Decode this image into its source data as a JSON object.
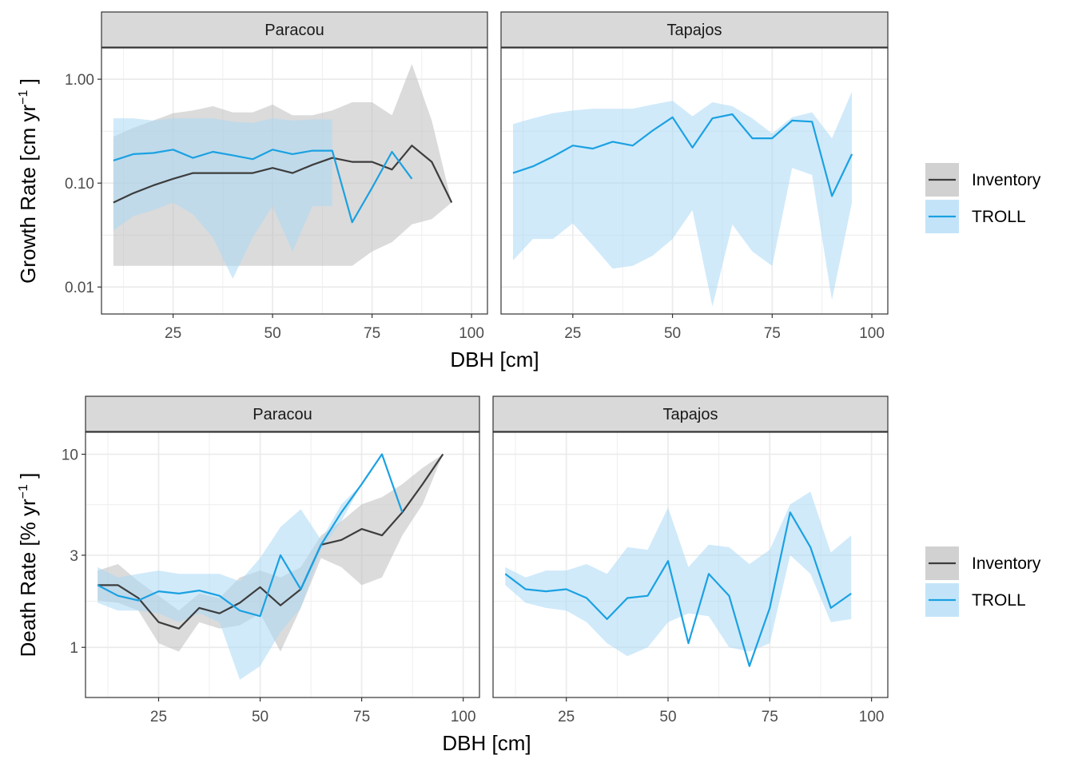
{
  "colors": {
    "inventory_line": "#3d3d3d",
    "inventory_band": "#bdbdbd",
    "troll_line": "#1ba1e2",
    "troll_band": "#a9d8f5",
    "strip_fill": "#d9d9d9",
    "grid": "#ebebeb"
  },
  "legend": [
    {
      "name": "Inventory",
      "color": "#3d3d3d",
      "band": "#bdbdbd"
    },
    {
      "name": "TROLL",
      "color": "#1ba1e2",
      "band": "#a9d8f5"
    }
  ],
  "chart_data": [
    {
      "type": "line",
      "facet": "Paracou",
      "title": "",
      "xlabel": "DBH [cm]",
      "ylabel": "Growth Rate [cm yr",
      "ylabel_sup": "−1",
      "ylabel_end": " ]",
      "yscale": "log",
      "xlim": [
        7,
        104
      ],
      "ylim": [
        0.0055,
        2.0
      ],
      "xticks": [
        25,
        50,
        75,
        100
      ],
      "yticks": [
        0.01,
        0.1,
        1.0
      ],
      "yticklabels": [
        "0.01",
        "0.10",
        "1.00"
      ],
      "series": [
        {
          "name": "Inventory",
          "x": [
            10,
            15,
            20,
            25,
            30,
            35,
            40,
            45,
            50,
            55,
            60,
            65,
            70,
            75,
            80,
            85,
            90,
            95
          ],
          "y": [
            0.065,
            0.08,
            0.095,
            0.11,
            0.125,
            0.125,
            0.125,
            0.125,
            0.14,
            0.125,
            0.15,
            0.175,
            0.16,
            0.16,
            0.135,
            0.23,
            0.16,
            0.065
          ],
          "upper": [
            0.28,
            0.34,
            0.4,
            0.47,
            0.5,
            0.55,
            0.48,
            0.48,
            0.57,
            0.45,
            0.45,
            0.5,
            0.6,
            0.6,
            0.45,
            1.4,
            0.4,
            0.065
          ],
          "lower": [
            0.016,
            0.016,
            0.016,
            0.016,
            0.016,
            0.016,
            0.016,
            0.016,
            0.016,
            0.016,
            0.016,
            0.016,
            0.016,
            0.022,
            0.027,
            0.04,
            0.045,
            0.065
          ]
        },
        {
          "name": "TROLL",
          "x": [
            10,
            15,
            20,
            25,
            30,
            35,
            40,
            45,
            50,
            55,
            60,
            65,
            70,
            75,
            80,
            85
          ],
          "y": [
            0.165,
            0.19,
            0.195,
            0.21,
            0.175,
            0.2,
            0.185,
            0.17,
            0.21,
            0.19,
            0.205,
            0.205,
            0.042,
            0.09,
            0.2,
            0.11
          ],
          "upper": [
            0.42,
            0.42,
            0.4,
            0.42,
            0.42,
            0.42,
            0.39,
            0.38,
            0.42,
            0.4,
            0.41,
            0.41,
            0.0,
            0.0,
            0.0,
            0.0
          ],
          "lower": [
            0.035,
            0.048,
            0.055,
            0.065,
            0.05,
            0.03,
            0.012,
            0.03,
            0.06,
            0.022,
            0.06,
            0.06,
            0.0,
            0.0,
            0.0,
            0.0
          ]
        }
      ]
    },
    {
      "type": "line",
      "facet": "Tapajos",
      "title": "",
      "xlabel": "DBH [cm]",
      "ylabel": "",
      "yscale": "log",
      "xlim": [
        7,
        104
      ],
      "ylim": [
        0.0055,
        2.0
      ],
      "xticks": [
        25,
        50,
        75,
        100
      ],
      "series": [
        {
          "name": "TROLL",
          "x": [
            10,
            15,
            20,
            25,
            30,
            35,
            40,
            45,
            50,
            55,
            60,
            65,
            70,
            75,
            80,
            85,
            90,
            95
          ],
          "y": [
            0.125,
            0.145,
            0.18,
            0.23,
            0.215,
            0.25,
            0.23,
            0.32,
            0.43,
            0.22,
            0.42,
            0.46,
            0.27,
            0.27,
            0.4,
            0.39,
            0.075,
            0.19
          ],
          "upper": [
            0.37,
            0.42,
            0.47,
            0.5,
            0.52,
            0.52,
            0.52,
            0.57,
            0.62,
            0.44,
            0.6,
            0.55,
            0.42,
            0.3,
            0.43,
            0.48,
            0.27,
            0.76
          ],
          "lower": [
            0.018,
            0.029,
            0.029,
            0.041,
            0.025,
            0.015,
            0.016,
            0.02,
            0.029,
            0.055,
            0.0065,
            0.04,
            0.022,
            0.016,
            0.14,
            0.12,
            0.0075,
            0.065
          ]
        }
      ]
    },
    {
      "type": "line",
      "facet": "Paracou",
      "title": "",
      "xlabel": "DBH [cm]",
      "ylabel": "Death Rate [% yr",
      "ylabel_sup": "−1",
      "ylabel_end": " ]",
      "yscale": "log",
      "xlim": [
        7,
        104
      ],
      "ylim": [
        0.55,
        13
      ],
      "xticks": [
        25,
        50,
        75,
        100
      ],
      "yticks": [
        1,
        3,
        10
      ],
      "yticklabels": [
        "1",
        "3",
        "10"
      ],
      "series": [
        {
          "name": "Inventory",
          "x": [
            10,
            15,
            20,
            25,
            30,
            35,
            40,
            45,
            50,
            55,
            60,
            65,
            70,
            75,
            80,
            85,
            90,
            95
          ],
          "y": [
            2.1,
            2.1,
            1.8,
            1.35,
            1.25,
            1.6,
            1.5,
            1.7,
            2.05,
            1.65,
            2.0,
            3.4,
            3.6,
            4.1,
            3.8,
            5.0,
            7.0,
            10.0
          ],
          "upper": [
            2.5,
            2.7,
            2.2,
            1.85,
            1.55,
            1.9,
            1.8,
            2.3,
            2.5,
            2.3,
            2.6,
            3.8,
            4.5,
            5.5,
            6.0,
            7.0,
            8.5,
            10.0
          ],
          "lower": [
            1.75,
            1.7,
            1.55,
            1.05,
            0.95,
            1.35,
            1.25,
            1.3,
            1.5,
            0.95,
            1.6,
            2.9,
            2.6,
            2.1,
            2.3,
            3.8,
            5.5,
            10.0
          ]
        },
        {
          "name": "TROLL",
          "x": [
            10,
            15,
            20,
            25,
            30,
            35,
            40,
            45,
            50,
            55,
            60,
            65,
            70,
            75,
            80,
            85
          ],
          "y": [
            2.1,
            1.85,
            1.75,
            1.95,
            1.9,
            1.97,
            1.85,
            1.55,
            1.45,
            3.0,
            2.0,
            3.4,
            5.0,
            7.0,
            10.0,
            5.0
          ],
          "upper": [
            2.6,
            2.3,
            2.4,
            2.5,
            2.4,
            2.4,
            2.4,
            2.2,
            2.9,
            4.2,
            5.2,
            3.6,
            5.5,
            7.0,
            10.0,
            5.0
          ],
          "lower": [
            1.7,
            1.55,
            1.55,
            1.5,
            1.35,
            1.5,
            1.35,
            0.68,
            0.8,
            1.2,
            1.6,
            3.2,
            4.5,
            7.0,
            10.0,
            5.0
          ]
        }
      ]
    },
    {
      "type": "line",
      "facet": "Tapajos",
      "title": "",
      "xlabel": "DBH [cm]",
      "ylabel": "",
      "yscale": "log",
      "xlim": [
        7,
        104
      ],
      "ylim": [
        0.55,
        13
      ],
      "xticks": [
        25,
        50,
        75,
        100
      ],
      "series": [
        {
          "name": "TROLL",
          "x": [
            10,
            15,
            20,
            25,
            30,
            35,
            40,
            45,
            50,
            55,
            60,
            65,
            70,
            75,
            80,
            85,
            90,
            95
          ],
          "y": [
            2.4,
            2.0,
            1.95,
            2.0,
            1.8,
            1.4,
            1.8,
            1.85,
            2.8,
            1.05,
            2.4,
            1.85,
            0.8,
            1.6,
            5.0,
            3.3,
            1.6,
            1.9
          ],
          "upper": [
            2.6,
            2.3,
            2.5,
            2.5,
            2.7,
            2.4,
            3.3,
            3.2,
            5.3,
            2.6,
            3.4,
            3.3,
            2.7,
            3.2,
            5.5,
            6.4,
            3.1,
            3.8
          ],
          "lower": [
            2.1,
            1.7,
            1.6,
            1.55,
            1.35,
            1.05,
            0.9,
            1.0,
            1.35,
            1.5,
            1.45,
            1.0,
            0.95,
            1.05,
            3.0,
            2.4,
            1.35,
            1.4
          ]
        }
      ]
    }
  ]
}
